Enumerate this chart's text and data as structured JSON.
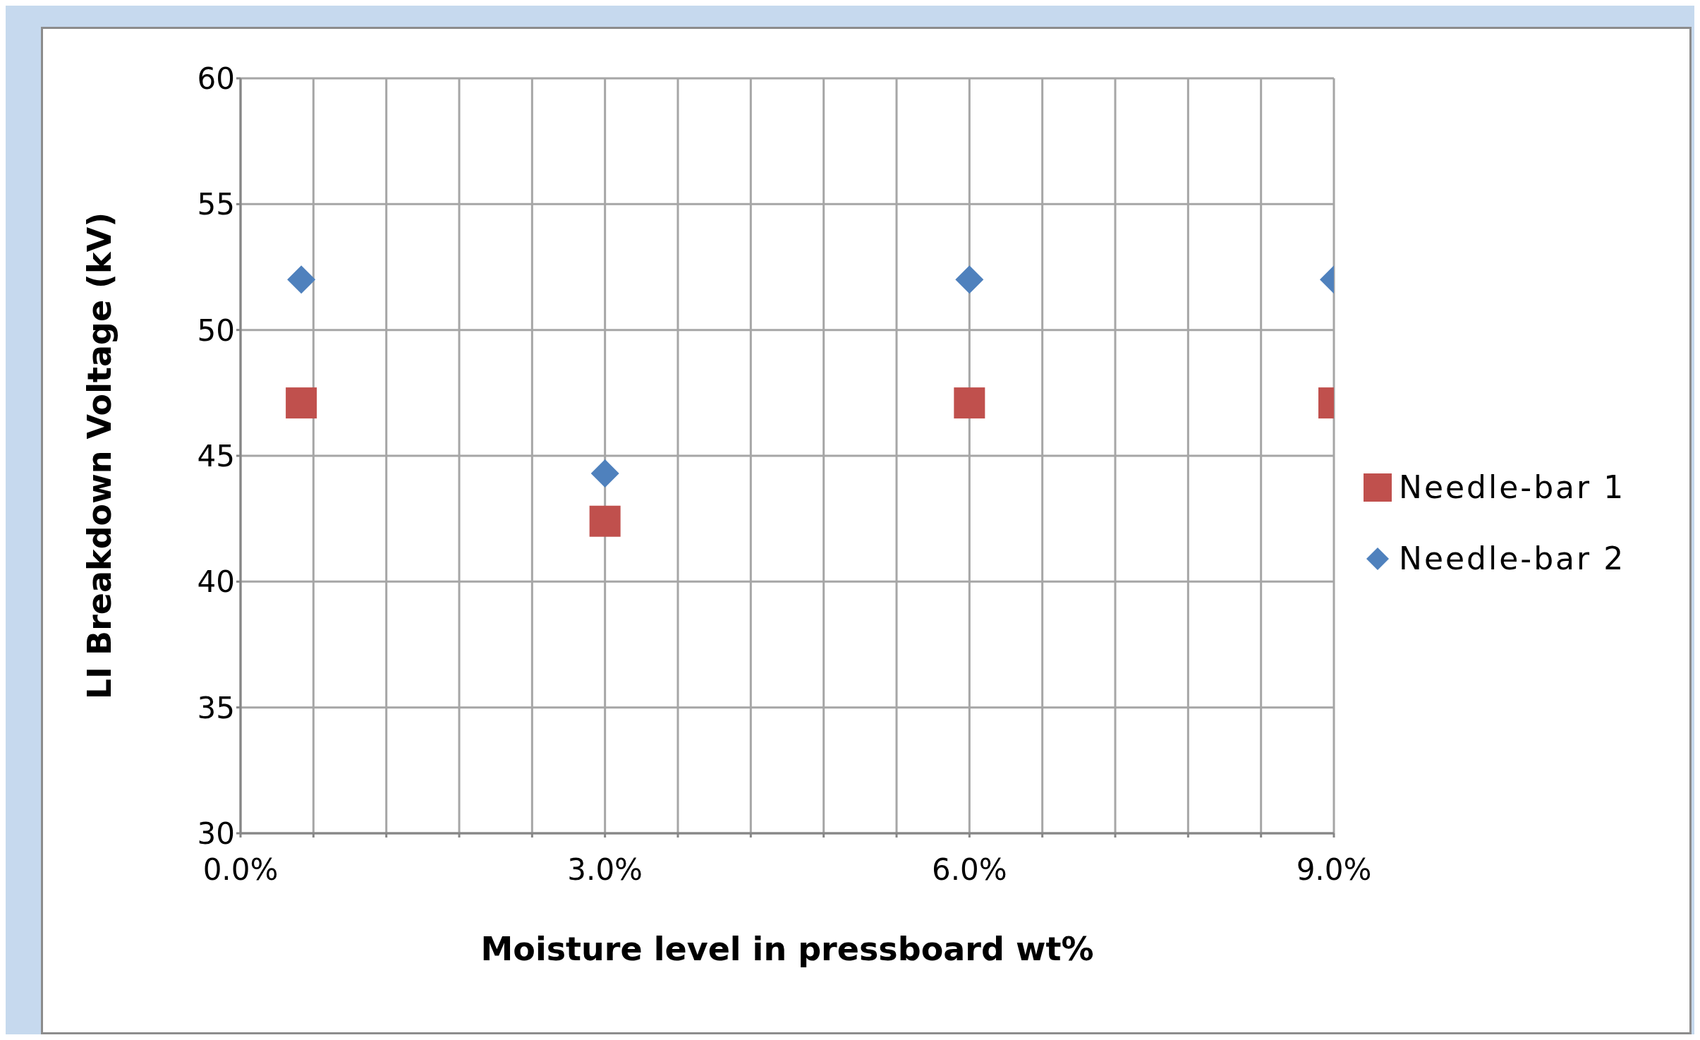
{
  "chart_data": {
    "type": "scatter",
    "xlabel": "Moisture level in pressboard wt%",
    "ylabel": "LI Breakdown  Voltage (kV)",
    "x": [
      0.5,
      3.0,
      6.0,
      9.0
    ],
    "series": [
      {
        "name": "Needle-bar 1",
        "color": "#c0504d",
        "marker": "square",
        "values": [
          47.1,
          42.4,
          47.1,
          47.1
        ]
      },
      {
        "name": "Needle-bar 2",
        "color": "#4f81bd",
        "marker": "diamond",
        "values": [
          52,
          44.3,
          52,
          52
        ]
      }
    ],
    "xlim": [
      0,
      9
    ],
    "xticks": [
      {
        "value": 0,
        "label": "0.0%"
      },
      {
        "value": 0.6,
        "label": null
      },
      {
        "value": 1.2,
        "label": null
      },
      {
        "value": 1.8,
        "label": null
      },
      {
        "value": 2.4,
        "label": null
      },
      {
        "value": 3,
        "label": "3.0%"
      },
      {
        "value": 3.6,
        "label": null
      },
      {
        "value": 4.2,
        "label": null
      },
      {
        "value": 4.8,
        "label": null
      },
      {
        "value": 5.4,
        "label": null
      },
      {
        "value": 6,
        "label": "6.0%"
      },
      {
        "value": 6.6,
        "label": null
      },
      {
        "value": 7.2,
        "label": null
      },
      {
        "value": 7.8,
        "label": null
      },
      {
        "value": 8.4,
        "label": null
      },
      {
        "value": 9,
        "label": "9.0%"
      }
    ],
    "ylim": [
      30,
      60
    ],
    "yticks": [
      30,
      35,
      40,
      45,
      50,
      55,
      60
    ],
    "grid": true,
    "legend": "right"
  }
}
